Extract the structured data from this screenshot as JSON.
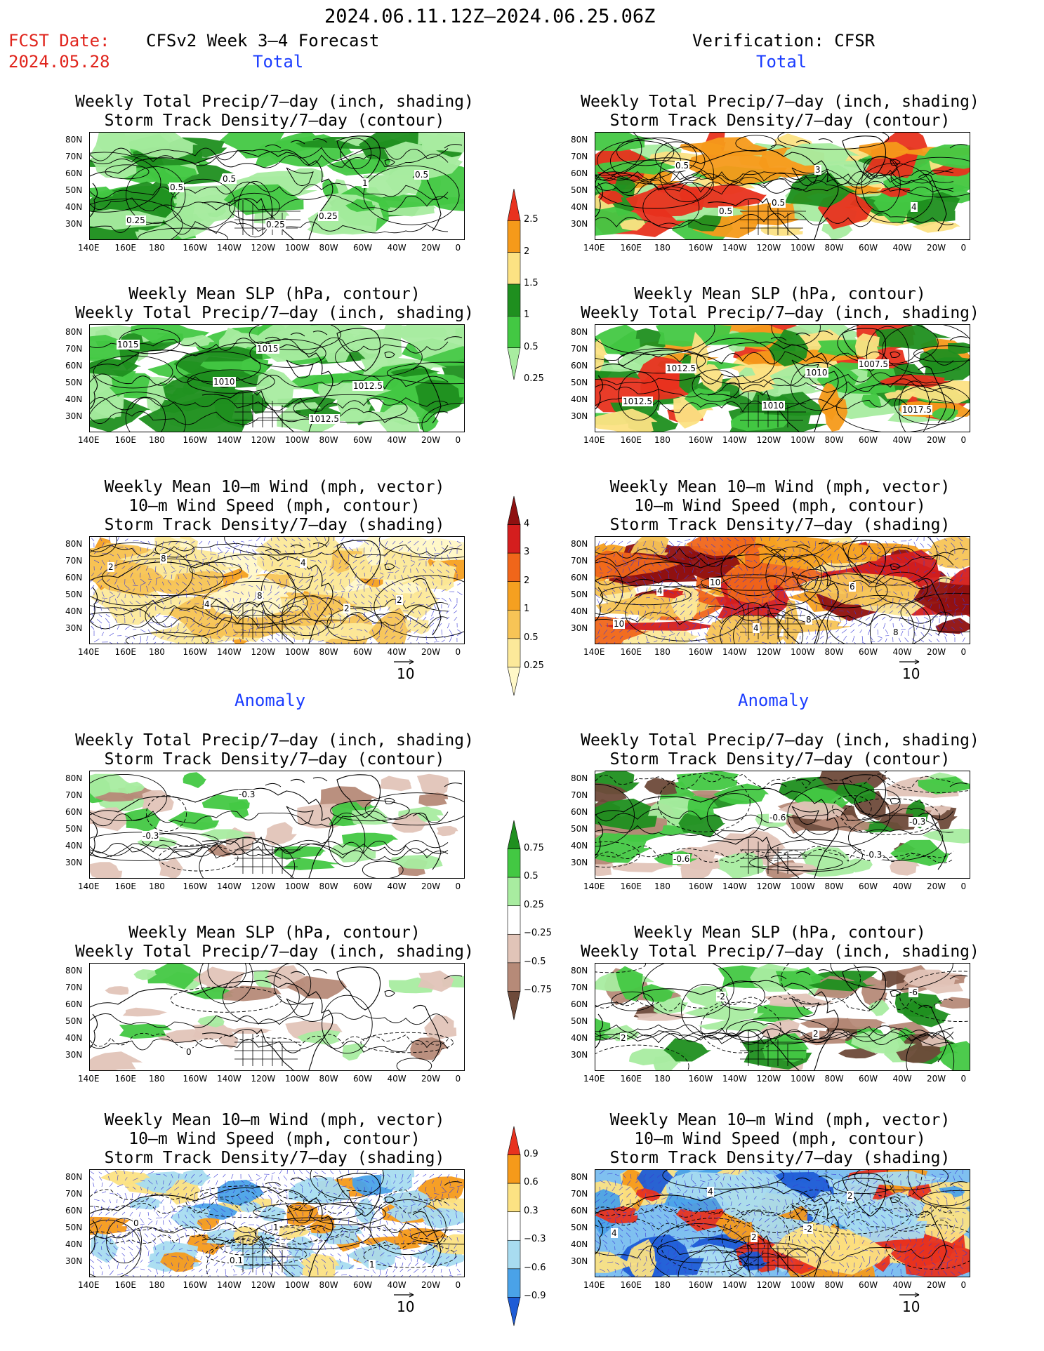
{
  "header": {
    "period": "2024.06.11.12Z–2024.06.25.06Z",
    "fcst_label": "FCST Date:",
    "fcst_date": "2024.05.28",
    "left_model": "CFSv2 Week 3–4 Forecast",
    "right_model": "Verification: CFSR"
  },
  "sections": {
    "total": "Total",
    "anomaly": "Anomaly"
  },
  "panel_titles": {
    "precip_storm": [
      "Weekly Total Precip/7–day (inch, shading)",
      "Storm Track Density/7–day (contour)"
    ],
    "slp_precip": [
      "Weekly Mean SLP (hPa, contour)",
      "Weekly Total Precip/7–day (inch, shading)"
    ],
    "wind_storm": [
      "Weekly Mean 10–m Wind (mph, vector)",
      "10–m Wind Speed (mph, contour)",
      "Storm Track Density/7–day (shading)"
    ]
  },
  "axes": {
    "lat_ticks": [
      "80N",
      "70N",
      "60N",
      "50N",
      "40N",
      "30N"
    ],
    "lon_ticks": [
      "140E",
      "160E",
      "180",
      "160W",
      "140W",
      "120W",
      "100W",
      "80W",
      "60W",
      "40W",
      "20W",
      "0"
    ]
  },
  "vector_ref": "10",
  "colorbars": {
    "precip_total": {
      "labels": [
        "2.5",
        "2",
        "1.5",
        "1",
        "0.5",
        "0.25"
      ],
      "colors": [
        "#e8321e",
        "#f59a1a",
        "#fce283",
        "#1f8f1f",
        "#43c843",
        "#a8eca0"
      ]
    },
    "storm_total": {
      "labels": [
        "4",
        "3",
        "2",
        "1",
        "0.5",
        "0.25"
      ],
      "colors": [
        "#8f1010",
        "#d41e1e",
        "#f0661a",
        "#f5a020",
        "#f7c456",
        "#fce99a",
        "#fff8c8"
      ]
    },
    "precip_anom": {
      "labels": [
        "0.75",
        "0.5",
        "0.25",
        "−0.25",
        "−0.5",
        "−0.75"
      ],
      "colors": [
        "#1f8f1f",
        "#43c843",
        "#a8eca0",
        "#ffffff",
        "#e1c4b8",
        "#b68a78",
        "#6e4a3a"
      ]
    },
    "storm_anom": {
      "labels": [
        "0.9",
        "0.6",
        "0.3",
        "−0.3",
        "−0.6",
        "−0.9"
      ],
      "colors": [
        "#e8321e",
        "#f59a1a",
        "#fce283",
        "#ffffff",
        "#a8dcf0",
        "#4aa2e8",
        "#1e5cd6"
      ]
    }
  },
  "contour_labels": {
    "p1": [
      "0.5",
      "0.25",
      "1",
      "0.25",
      "0.5",
      "0.25",
      "0.5"
    ],
    "p2": [
      "1015",
      "1012.5",
      "1015",
      "1010",
      "1012.5"
    ],
    "p3": [
      "2",
      "2",
      "4",
      "4",
      "2",
      "8",
      "8"
    ],
    "p4": [
      "0.5",
      "3",
      "4",
      "0.5",
      "0.5"
    ],
    "p5": [
      "1010",
      "1017.5",
      "1012.5",
      "1010",
      "1007.5",
      "1012.5"
    ],
    "p6": [
      "8",
      "4",
      "4",
      "6",
      "10",
      "10",
      "8"
    ],
    "p7": [
      "-0.3",
      "-0.3"
    ],
    "p8": [
      "0"
    ],
    "p9": [
      "1",
      "1",
      "0",
      "0.1"
    ],
    "p10": [
      "-0.3",
      "-0.6",
      "-0.6",
      "-0.3"
    ],
    "p11": [
      "2",
      "-2",
      "2",
      "-6"
    ],
    "p12": [
      "2",
      "2",
      "4",
      "4",
      "-2"
    ]
  }
}
